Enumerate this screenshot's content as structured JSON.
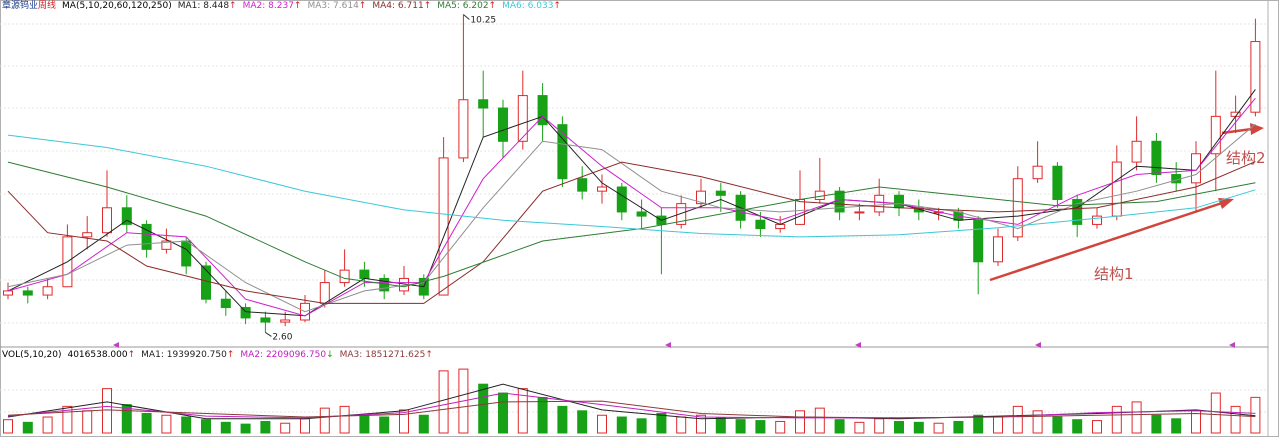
{
  "header": {
    "stock": "章源钨业",
    "period": "周线",
    "indicator": "MA(5,10,20,60,120,250)",
    "separator": ": "
  },
  "chart_data": [
    {
      "type": "candlestick",
      "up_color": "#e0292b",
      "down_color": "#17a117",
      "ylim": [
        2.25,
        10.6
      ],
      "ohlc": [
        [
          3.5,
          3.8,
          3.4,
          3.6
        ],
        [
          3.6,
          3.7,
          3.3,
          3.5
        ],
        [
          3.5,
          3.9,
          3.4,
          3.7
        ],
        [
          3.7,
          5.2,
          3.7,
          4.9
        ],
        [
          4.9,
          5.4,
          4.6,
          5.0
        ],
        [
          5.0,
          6.5,
          4.9,
          5.6
        ],
        [
          5.6,
          5.9,
          5.0,
          5.2
        ],
        [
          5.2,
          5.3,
          4.4,
          4.6
        ],
        [
          4.6,
          5.1,
          4.5,
          4.8
        ],
        [
          4.8,
          4.9,
          4.0,
          4.2
        ],
        [
          4.2,
          4.3,
          3.3,
          3.4
        ],
        [
          3.4,
          3.6,
          3.0,
          3.2
        ],
        [
          3.2,
          3.3,
          2.8,
          2.95
        ],
        [
          2.95,
          3.1,
          2.6,
          2.85
        ],
        [
          2.85,
          3.1,
          2.75,
          2.9
        ],
        [
          2.9,
          3.5,
          2.85,
          3.3
        ],
        [
          3.3,
          4.1,
          3.2,
          3.8
        ],
        [
          3.8,
          4.6,
          3.7,
          4.1
        ],
        [
          4.1,
          4.3,
          3.7,
          3.9
        ],
        [
          3.9,
          4.0,
          3.4,
          3.6
        ],
        [
          3.6,
          4.2,
          3.5,
          3.9
        ],
        [
          3.9,
          4.0,
          3.4,
          3.5
        ],
        [
          3.5,
          7.3,
          3.5,
          6.8
        ],
        [
          6.8,
          10.25,
          6.7,
          8.2
        ],
        [
          8.2,
          8.9,
          7.3,
          8.0
        ],
        [
          8.0,
          8.2,
          6.8,
          7.2
        ],
        [
          7.2,
          8.9,
          7.0,
          8.3
        ],
        [
          8.3,
          8.6,
          7.2,
          7.6
        ],
        [
          7.6,
          7.8,
          6.1,
          6.3
        ],
        [
          6.3,
          6.6,
          5.8,
          6.0
        ],
        [
          6.0,
          6.4,
          5.7,
          6.1
        ],
        [
          6.1,
          6.2,
          5.3,
          5.5
        ],
        [
          5.5,
          5.8,
          5.1,
          5.4
        ],
        [
          5.4,
          5.6,
          4.0,
          5.2
        ],
        [
          5.2,
          5.9,
          5.1,
          5.7
        ],
        [
          5.7,
          6.3,
          5.6,
          6.0
        ],
        [
          6.0,
          6.2,
          5.5,
          5.9
        ],
        [
          5.9,
          6.0,
          5.1,
          5.3
        ],
        [
          5.3,
          5.5,
          4.9,
          5.1
        ],
        [
          5.1,
          5.4,
          5.0,
          5.2
        ],
        [
          5.2,
          6.5,
          5.2,
          5.8
        ],
        [
          5.8,
          6.8,
          5.7,
          6.0
        ],
        [
          6.0,
          6.1,
          5.3,
          5.5
        ],
        [
          5.5,
          5.7,
          5.3,
          5.5
        ],
        [
          5.5,
          6.3,
          5.4,
          5.9
        ],
        [
          5.9,
          6.0,
          5.4,
          5.6
        ],
        [
          5.6,
          5.8,
          5.3,
          5.5
        ],
        [
          5.5,
          5.6,
          5.3,
          5.5
        ],
        [
          5.5,
          5.6,
          5.1,
          5.3
        ],
        [
          5.3,
          5.4,
          3.52,
          4.3
        ],
        [
          4.3,
          5.1,
          4.2,
          4.9
        ],
        [
          4.9,
          6.6,
          4.8,
          6.3
        ],
        [
          6.3,
          7.2,
          6.2,
          6.6
        ],
        [
          6.6,
          6.7,
          5.6,
          5.8
        ],
        [
          5.8,
          5.9,
          4.9,
          5.2
        ],
        [
          5.2,
          5.6,
          5.1,
          5.4
        ],
        [
          5.4,
          7.1,
          5.3,
          6.7
        ],
        [
          6.7,
          7.8,
          6.5,
          7.2
        ],
        [
          7.2,
          7.4,
          6.2,
          6.4
        ],
        [
          6.4,
          6.7,
          6.0,
          6.2
        ],
        [
          6.2,
          7.2,
          5.5,
          6.9
        ],
        [
          6.9,
          8.9,
          6.0,
          7.8
        ],
        [
          7.8,
          8.3,
          7.4,
          7.9
        ],
        [
          7.9,
          10.15,
          7.8,
          9.6
        ]
      ],
      "series": [
        {
          "name": "MA1",
          "color": "#222222",
          "trend": "↑",
          "x": [
            0,
            3,
            6,
            9,
            12,
            15,
            18,
            21,
            24,
            27,
            30,
            33,
            36,
            39,
            42,
            45,
            48,
            51,
            54,
            57,
            60,
            63
          ],
          "values": [
            3.6,
            4.3,
            5.3,
            4.6,
            3.1,
            3.0,
            3.9,
            3.7,
            7.3,
            7.8,
            6.2,
            5.3,
            5.8,
            5.2,
            5.8,
            5.7,
            5.3,
            5.4,
            5.6,
            6.6,
            6.5,
            8.448
          ]
        },
        {
          "name": "MA2",
          "color": "#d020d0",
          "trend": "↑",
          "x": [
            0,
            3,
            6,
            9,
            12,
            15,
            18,
            21,
            24,
            27,
            30,
            33,
            36,
            39,
            42,
            45,
            48,
            51,
            54,
            57,
            60,
            63
          ],
          "values": [
            3.6,
            4.0,
            5.0,
            4.9,
            3.4,
            3.0,
            3.8,
            3.8,
            6.3,
            7.8,
            6.6,
            5.6,
            5.6,
            5.3,
            5.8,
            5.7,
            5.4,
            5.2,
            5.9,
            6.4,
            6.5,
            8.237
          ]
        },
        {
          "name": "MA3",
          "color": "#909090",
          "trend": "↑",
          "x": [
            0,
            3,
            6,
            9,
            12,
            15,
            18,
            21,
            24,
            27,
            30,
            33,
            36,
            39,
            42,
            45,
            48,
            51,
            54,
            57,
            60,
            63
          ],
          "values": [
            3.7,
            4.0,
            4.7,
            4.8,
            3.8,
            3.1,
            3.6,
            3.8,
            5.6,
            7.2,
            7.0,
            6.0,
            5.6,
            5.5,
            5.6,
            5.7,
            5.5,
            5.1,
            5.7,
            6.0,
            6.4,
            7.614
          ]
        },
        {
          "name": "MA4",
          "color": "#8b2a2a",
          "trend": "↑",
          "x": [
            0,
            2,
            5,
            7,
            12,
            16,
            21,
            24,
            27,
            31,
            35,
            40,
            45,
            50,
            55,
            60,
            63
          ],
          "values": [
            6.0,
            5.0,
            4.8,
            4.2,
            3.6,
            3.3,
            3.3,
            4.3,
            6.0,
            6.7,
            6.35,
            5.75,
            5.6,
            5.5,
            5.6,
            6.1,
            6.711
          ]
        },
        {
          "name": "MA5",
          "color": "#2e7d32",
          "trend": "↑",
          "x": [
            0,
            5,
            10,
            15,
            17,
            20,
            22,
            27,
            32,
            40,
            44,
            48,
            53,
            58,
            63
          ],
          "values": [
            6.7,
            6.1,
            5.4,
            4.3,
            3.9,
            3.7,
            3.95,
            4.8,
            5.1,
            5.8,
            6.1,
            5.9,
            5.65,
            5.75,
            6.202
          ]
        },
        {
          "name": "MA6",
          "color": "#3cc8d8",
          "trend": "↑",
          "x": [
            0,
            5,
            10,
            15,
            20,
            25,
            30,
            35,
            40,
            45,
            50,
            55,
            60,
            63
          ],
          "values": [
            7.35,
            7.05,
            6.6,
            6.0,
            5.55,
            5.3,
            5.15,
            4.98,
            4.9,
            4.95,
            5.12,
            5.35,
            5.6,
            6.033
          ]
        }
      ],
      "extremes": [
        {
          "value": 10.25,
          "label": "10.25",
          "index": 23
        },
        {
          "value": 2.6,
          "label": "2.60",
          "index": 13
        }
      ],
      "annotations": [
        "结构1",
        "结构2"
      ]
    },
    {
      "type": "bar",
      "indicator": "VOL(5,10,20)",
      "trend": "↑",
      "last_label": "4016538.000",
      "ylim": [
        0,
        8000000
      ],
      "values": [
        1500000,
        1200000,
        1800000,
        3000000,
        2500000,
        5000000,
        3200000,
        2200000,
        2000000,
        1800000,
        1500000,
        1200000,
        1000000,
        1300000,
        1100000,
        1600000,
        2800000,
        3000000,
        2000000,
        1800000,
        2600000,
        2000000,
        7000000,
        7200000,
        5500000,
        4500000,
        5000000,
        4000000,
        3000000,
        2500000,
        2000000,
        1800000,
        1600000,
        2200000,
        1800000,
        2000000,
        1700000,
        1500000,
        1400000,
        1300000,
        2500000,
        2800000,
        1500000,
        1200000,
        1600000,
        1300000,
        1200000,
        1100000,
        1300000,
        2000000,
        1800000,
        3000000,
        2500000,
        1800000,
        1500000,
        1400000,
        3000000,
        3500000,
        2000000,
        1600000,
        2500000,
        4500000,
        3000000,
        4016538
      ],
      "series": [
        {
          "name": "MA1",
          "color": "#222222",
          "trend": "↑",
          "last_label": "1939920.750",
          "x": [
            0,
            5,
            10,
            15,
            20,
            25,
            30,
            35,
            40,
            45,
            50,
            55,
            60,
            63
          ],
          "values": [
            1800000,
            3500000,
            1600000,
            1600000,
            2500000,
            5500000,
            2600000,
            1600000,
            1800000,
            1600000,
            1900000,
            2200000,
            2600000,
            1939920.75
          ]
        },
        {
          "name": "MA2",
          "color": "#c020c0",
          "trend": "↓",
          "last_label": "2209096.750",
          "x": [
            0,
            5,
            10,
            15,
            20,
            25,
            30,
            35,
            40,
            45,
            50,
            55,
            60,
            63
          ],
          "values": [
            1900000,
            3000000,
            1900000,
            1700000,
            2300000,
            4500000,
            3200000,
            1800000,
            1700000,
            1700000,
            1800000,
            2300000,
            2500000,
            2209096.75
          ]
        },
        {
          "name": "MA3",
          "color": "#8b3a3a",
          "trend": "↑",
          "last_label": "1851271.625",
          "x": [
            0,
            5,
            10,
            15,
            20,
            25,
            30,
            35,
            40,
            45,
            50,
            55,
            60,
            63
          ],
          "values": [
            2000000,
            2600000,
            2200000,
            1800000,
            2100000,
            3500000,
            3600000,
            2200000,
            1800000,
            1700000,
            1800000,
            2000000,
            2200000,
            1851271.625
          ]
        }
      ]
    }
  ]
}
